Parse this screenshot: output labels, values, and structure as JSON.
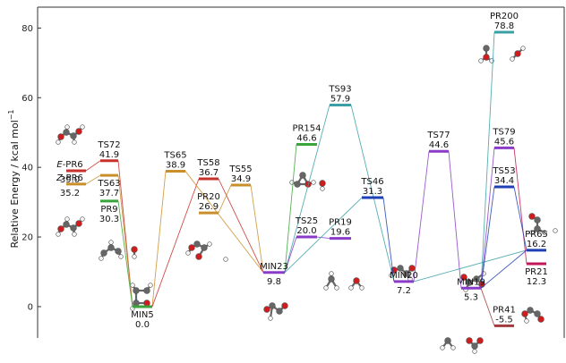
{
  "chart_data": {
    "type": "energy-diagram",
    "ylabel_main": "Relative Energy / kcal mol",
    "ylabel_sup": "−1",
    "ylim": [
      -9,
      86
    ],
    "yticks": [
      0,
      20,
      40,
      60,
      80
    ],
    "grid": false,
    "colors": {
      "red": "#c8302c",
      "orange": "#c98f2a",
      "green": "#3aa53a",
      "purple": "#8a3cc8",
      "blue": "#1f3fb5",
      "teal": "#3aa0a6",
      "pink": "#c2185b",
      "darkred": "#a23b3b",
      "grey": "#888888"
    },
    "levels": [
      {
        "id": "E-PR6",
        "name": "E-PR6",
        "italic_prefix": "E",
        "rest": "-PR6",
        "value": 39.0,
        "color": "red",
        "label_pos": "left"
      },
      {
        "id": "Z-PR6",
        "name": "Z-PR6",
        "italic_prefix": "Z",
        "rest": "-PR6",
        "value": 35.2,
        "color": "orange",
        "label_pos": "left"
      },
      {
        "id": "TS72",
        "name": "TS72",
        "value": 41.9,
        "color": "red",
        "label_pos": "above"
      },
      {
        "id": "TS63",
        "name": "TS63",
        "value": 37.7,
        "color": "orange",
        "label_pos": "below"
      },
      {
        "id": "PR9",
        "name": "PR9",
        "value": 30.3,
        "color": "green",
        "label_pos": "below"
      },
      {
        "id": "MIN5",
        "name": "MIN5",
        "value": 0.0,
        "color": "green",
        "label_pos": "below"
      },
      {
        "id": "TS65",
        "name": "TS65",
        "value": 38.9,
        "color": "orange",
        "label_pos": "above"
      },
      {
        "id": "TS58",
        "name": "TS58",
        "value": 36.7,
        "color": "red",
        "label_pos": "above"
      },
      {
        "id": "PR20",
        "name": "PR20",
        "value": 26.9,
        "color": "orange",
        "label_pos": "above"
      },
      {
        "id": "TS55",
        "name": "TS55",
        "value": 34.9,
        "color": "orange",
        "label_pos": "above"
      },
      {
        "id": "MIN23",
        "name": "MIN23",
        "value": 9.8,
        "color": "purple",
        "label_pos": "above-below"
      },
      {
        "id": "PR154",
        "name": "PR154",
        "value": 46.6,
        "color": "green",
        "label_pos": "above"
      },
      {
        "id": "TS25",
        "name": "TS25",
        "value": 20.0,
        "color": "purple",
        "label_pos": "above"
      },
      {
        "id": "TS93",
        "name": "TS93",
        "value": 57.9,
        "color": "teal",
        "label_pos": "above"
      },
      {
        "id": "PR19",
        "name": "PR19",
        "value": 19.6,
        "color": "purple",
        "label_pos": "above"
      },
      {
        "id": "TS46",
        "name": "TS46",
        "value": 31.3,
        "color": "blue",
        "label_pos": "above"
      },
      {
        "id": "MIN20",
        "name": "MIN20",
        "value": 7.2,
        "color": "purple",
        "label_pos": "above-below"
      },
      {
        "id": "TS77",
        "name": "TS77",
        "value": 44.6,
        "color": "purple",
        "label_pos": "above"
      },
      {
        "id": "MIN19",
        "name": "MIN19",
        "value": 5.3,
        "color": "purple",
        "label_pos": "above-below"
      },
      {
        "id": "PR200",
        "name": "PR200",
        "value": 78.8,
        "color": "teal",
        "label_pos": "above"
      },
      {
        "id": "TS79",
        "name": "TS79",
        "value": 45.6,
        "color": "purple",
        "label_pos": "above"
      },
      {
        "id": "TS53",
        "name": "TS53",
        "value": 34.4,
        "color": "blue",
        "label_pos": "above"
      },
      {
        "id": "PR65",
        "name": "PR65",
        "value": 16.2,
        "color": "blue",
        "label_pos": "above"
      },
      {
        "id": "PR21",
        "name": "PR21",
        "value": 12.3,
        "color": "pink",
        "label_pos": "below"
      },
      {
        "id": "PR41",
        "name": "PR41",
        "value": -5.5,
        "color": "darkred",
        "label_pos": "above"
      }
    ],
    "connections": [
      {
        "from": "TS72",
        "to": "MIN5",
        "color": "red"
      },
      {
        "from": "TS63",
        "to": "MIN5",
        "color": "orange"
      },
      {
        "from": "E-PR6",
        "to": "TS72",
        "color": "red"
      },
      {
        "from": "Z-PR6",
        "to": "TS63",
        "color": "orange"
      },
      {
        "from": "PR9",
        "to": "MIN5",
        "color": "green"
      },
      {
        "from": "MIN5",
        "to": "TS65",
        "color": "orange"
      },
      {
        "from": "MIN5",
        "to": "TS58",
        "color": "red"
      },
      {
        "from": "TS65",
        "to": "MIN23",
        "color": "orange"
      },
      {
        "from": "TS58",
        "to": "MIN23",
        "color": "red"
      },
      {
        "from": "TS55",
        "to": "MIN23",
        "color": "orange"
      },
      {
        "from": "PR20",
        "to": "TS55",
        "color": "orange"
      },
      {
        "from": "MIN23",
        "to": "PR154",
        "color": "green"
      },
      {
        "from": "MIN23",
        "to": "TS93",
        "color": "teal"
      },
      {
        "from": "MIN23",
        "to": "TS25",
        "color": "purple"
      },
      {
        "from": "TS25",
        "to": "PR19",
        "color": "purple"
      },
      {
        "from": "TS93",
        "to": "MIN20",
        "color": "teal"
      },
      {
        "from": "TS46",
        "to": "MIN20",
        "color": "blue"
      },
      {
        "from": "TS46",
        "to": "MIN23",
        "color": "teal"
      },
      {
        "from": "MIN20",
        "to": "TS77",
        "color": "purple"
      },
      {
        "from": "TS77",
        "to": "MIN19",
        "color": "purple"
      },
      {
        "from": "MIN20",
        "to": "PR65",
        "color": "teal"
      },
      {
        "from": "MIN19",
        "to": "PR200",
        "color": "teal"
      },
      {
        "from": "MIN19",
        "to": "TS79",
        "color": "purple"
      },
      {
        "from": "MIN19",
        "to": "TS53",
        "color": "blue"
      },
      {
        "from": "TS79",
        "to": "PR21",
        "color": "pink"
      },
      {
        "from": "TS53",
        "to": "PR65",
        "color": "blue"
      },
      {
        "from": "MIN19",
        "to": "PR41",
        "color": "darkred"
      },
      {
        "from": "MIN19",
        "to": "PR65",
        "color": "blue"
      }
    ]
  }
}
